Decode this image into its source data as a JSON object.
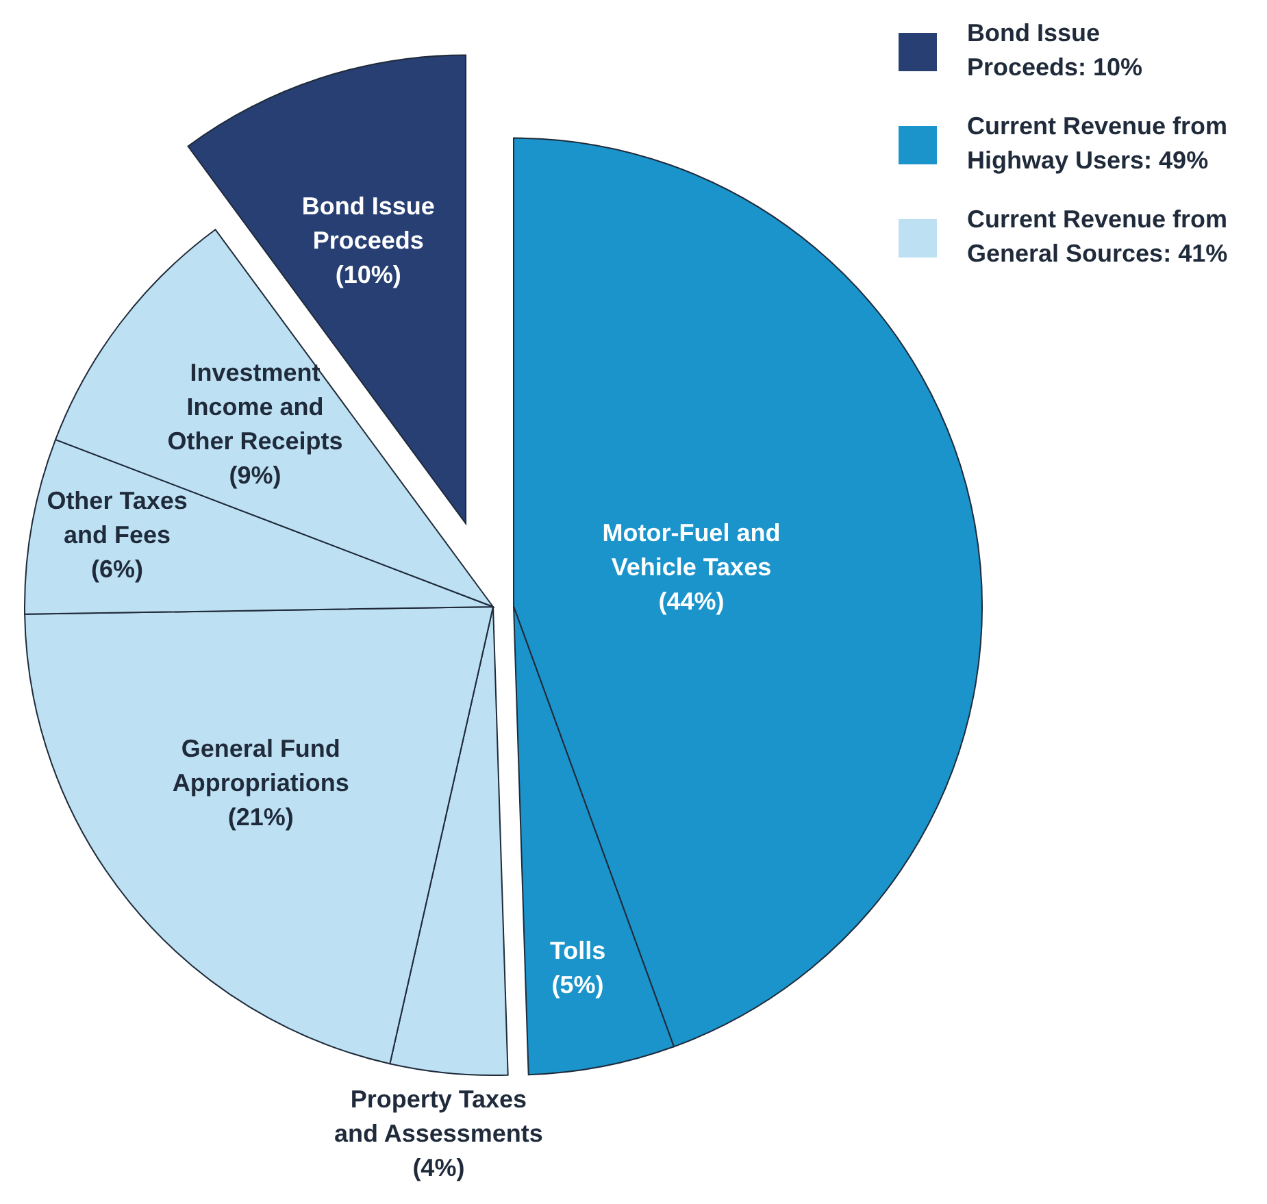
{
  "chart_data": {
    "type": "pie",
    "categories": [
      "Bond Issue Proceeds",
      "Motor-Fuel and Vehicle Taxes",
      "Tolls",
      "Property Taxes and Assessments",
      "General Fund Appropriations",
      "Other Taxes and Fees",
      "Investment Income and Other Receipts"
    ],
    "values": [
      10,
      44,
      5,
      4,
      21,
      6,
      9
    ],
    "value_labels": [
      "(10%)",
      "(44%)",
      "(5%)",
      "(4%)",
      "(21%)",
      "(6%)",
      "(9%)"
    ],
    "colors": [
      "#283f73",
      "#1a94cb",
      "#1a94cb",
      "#bde0f3",
      "#bde0f3",
      "#bde0f3",
      "#bde0f3"
    ],
    "annotations": [
      "Bond Issue Proceeds: 10%",
      "Current Revenue from Highway Users: 49%",
      "Current Revenue from General Sources: 41%"
    ]
  }
}
